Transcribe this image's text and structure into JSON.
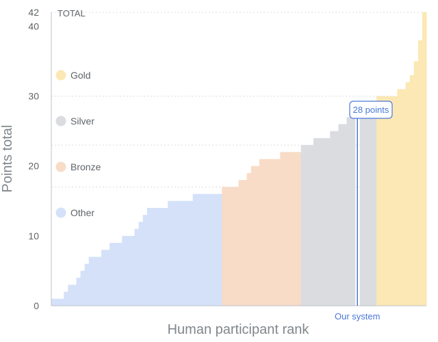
{
  "chart_data": {
    "type": "bar",
    "ylabel": "Points total",
    "xlabel": "Human participant rank",
    "ylim": [
      0,
      42
    ],
    "yticks": [
      0,
      10,
      20,
      30,
      40,
      42
    ],
    "total_label": "TOTAL",
    "grid": "dotted horizontal at 17, 23, 30, 42",
    "legend_position": "left",
    "legend": [
      {
        "name": "Gold",
        "color": "#fbe8b4"
      },
      {
        "name": "Silver",
        "color": "#dadce0"
      },
      {
        "name": "Bronze",
        "color": "#f8dcc7"
      },
      {
        "name": "Other",
        "color": "#d4e1f9"
      }
    ],
    "series": [
      {
        "name": "Other",
        "color": "#d4e1f9",
        "values": [
          1,
          1,
          1,
          2,
          3,
          3,
          4,
          5,
          6,
          7,
          7,
          7,
          8,
          8,
          9,
          9,
          9,
          10,
          10,
          10,
          11,
          12,
          13,
          14,
          14,
          14,
          14,
          14,
          15,
          15,
          15,
          15,
          15,
          15,
          16,
          16,
          16,
          16,
          16,
          16,
          16
        ]
      },
      {
        "name": "Bronze",
        "color": "#f8dcc7",
        "values": [
          17,
          17,
          17,
          17,
          18,
          18,
          19,
          20,
          20,
          21,
          21,
          21,
          21,
          21,
          22,
          22,
          22,
          22,
          22
        ]
      },
      {
        "name": "Silver",
        "color": "#dadce0",
        "values": [
          23,
          23,
          23,
          24,
          24,
          24,
          24,
          25,
          25,
          26,
          26,
          27,
          27,
          28,
          28,
          28,
          29
        ]
      },
      {
        "name": "Gold",
        "color": "#fbe8b4",
        "values": [
          30,
          30,
          30,
          30,
          30,
          31,
          31,
          32,
          33,
          35,
          38,
          42
        ]
      }
    ],
    "our_system": {
      "value": 28,
      "after_rank": 73,
      "label": "Our system",
      "callout": "28 points",
      "color": "#4a78d8"
    }
  }
}
